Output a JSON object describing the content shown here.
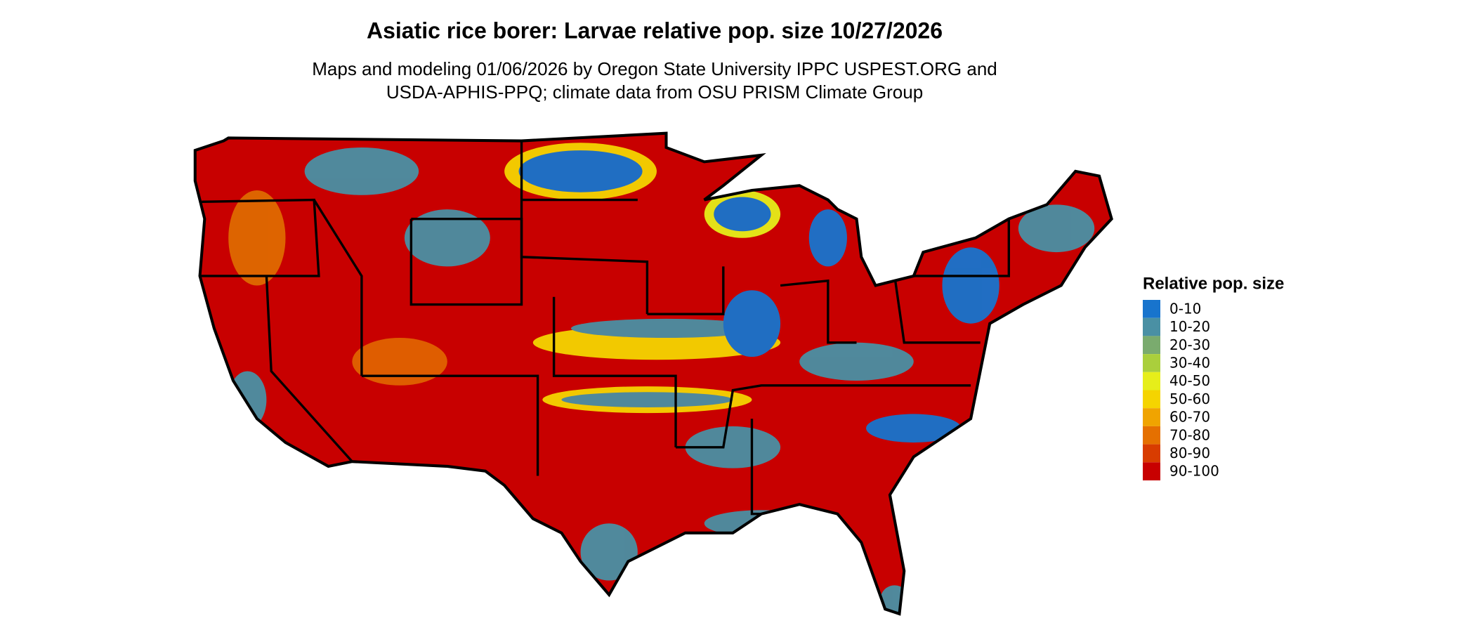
{
  "title": "Asiatic rice borer: Larvae relative pop. size 10/27/2026",
  "subtitle_lines": [
    "Maps and modeling 01/06/2026 by Oregon State University IPPC USPEST.ORG and",
    "USDA-APHIS-PPQ; climate data from OSU PRISM Climate Group"
  ],
  "legend": {
    "title": "Relative pop. size",
    "items": [
      {
        "label": "0-10",
        "color": "#1874cd"
      },
      {
        "label": "10-20",
        "color": "#4a90a4"
      },
      {
        "label": "20-30",
        "color": "#7aab6e"
      },
      {
        "label": "30-40",
        "color": "#aacf3c"
      },
      {
        "label": "40-50",
        "color": "#e6ee1a"
      },
      {
        "label": "50-60",
        "color": "#f5d400"
      },
      {
        "label": "60-70",
        "color": "#f0a400"
      },
      {
        "label": "70-80",
        "color": "#e57000"
      },
      {
        "label": "80-90",
        "color": "#d83c00"
      },
      {
        "label": "90-100",
        "color": "#c80000"
      }
    ]
  }
}
